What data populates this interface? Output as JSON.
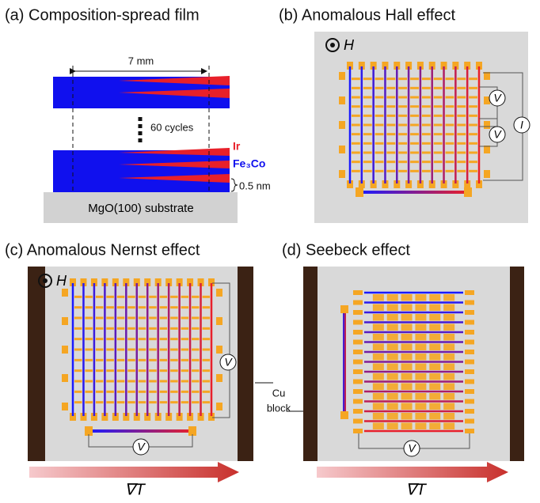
{
  "panels": [
    {
      "title": "(a) Composition-spread film",
      "width_label": "7 mm",
      "cycles_label": "60 cycles",
      "ir_label": "Ir",
      "fe3co_label": "Fe₃Co",
      "thickness_label": "0.5 nm",
      "substrate_label": "MgO(100) substrate"
    },
    {
      "title": "(b) Anomalous Hall effect",
      "field_label": "H",
      "voltage_labels": [
        "V",
        "V"
      ],
      "current_label": "I"
    },
    {
      "title": "(c) Anomalous Nernst effect",
      "field_label": "H",
      "voltage_labels": [
        "V",
        "V"
      ],
      "gradient_label": "∇T"
    },
    {
      "title": "(d) Seebeck effect",
      "voltage_labels": [
        "V"
      ],
      "gradient_label": "∇T"
    }
  ],
  "cu_block_label": [
    "Cu",
    "block"
  ]
}
